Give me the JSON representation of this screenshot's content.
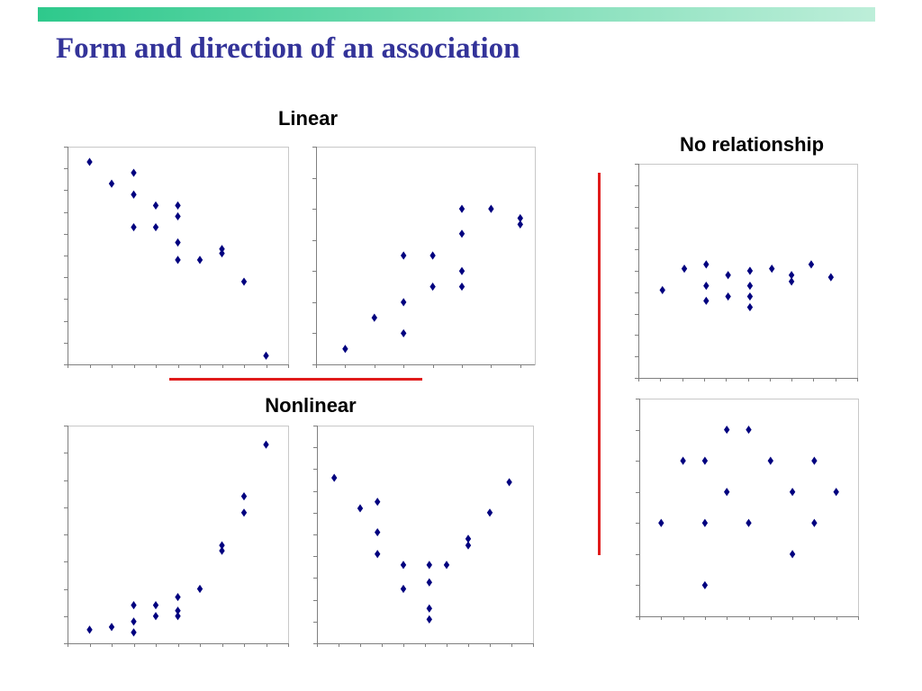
{
  "slide": {
    "title": "Form and direction of an association"
  },
  "sections": {
    "linear": "Linear",
    "nonlinear": "Nonlinear",
    "no_relationship": "No relationship"
  },
  "colors": {
    "title": "#333399",
    "divider": "#e01b1b",
    "marker": "#00007f",
    "accent_bar_start": "#2ec98c",
    "accent_bar_end": "#bdeed9"
  },
  "chart_data": [
    {
      "type": "scatter",
      "x": [
        1,
        2,
        3,
        3,
        3,
        4,
        4,
        5,
        5,
        5,
        5,
        6,
        7,
        7,
        8,
        9
      ],
      "y": [
        9.3,
        8.3,
        8.8,
        7.8,
        6.3,
        7.3,
        6.3,
        7.3,
        6.8,
        5.6,
        4.8,
        4.8,
        5.3,
        5.1,
        3.8,
        0.4
      ],
      "xlim": [
        0,
        10
      ],
      "ylim": [
        0,
        10
      ],
      "grid": false
    },
    {
      "type": "scatter",
      "x": [
        1,
        2,
        3,
        3,
        3,
        4,
        4,
        5,
        5,
        5,
        5,
        6,
        7,
        7
      ],
      "y": [
        0.5,
        1.5,
        1.0,
        2.0,
        3.5,
        3.5,
        2.5,
        2.5,
        3.0,
        4.2,
        5.0,
        5.0,
        4.7,
        4.5
      ],
      "xlim": [
        0,
        7.5
      ],
      "ylim": [
        0,
        7
      ],
      "grid": false
    },
    {
      "type": "scatter",
      "x": [
        1,
        2,
        3,
        3,
        3,
        4,
        4,
        5,
        5,
        5,
        6,
        7,
        7,
        8,
        8,
        9
      ],
      "y": [
        0.5,
        0.6,
        1.4,
        0.8,
        0.4,
        1.4,
        1.0,
        1.7,
        1.2,
        1.0,
        2.0,
        3.6,
        3.4,
        5.4,
        4.8,
        7.3
      ],
      "xlim": [
        0,
        10
      ],
      "ylim": [
        0,
        8
      ],
      "grid": false
    },
    {
      "type": "scatter",
      "x": [
        0.8,
        2.0,
        2.8,
        2.8,
        2.8,
        4.0,
        4.0,
        5.2,
        5.2,
        5.2,
        5.2,
        6.0,
        7.0,
        7.0,
        8.0,
        8.9
      ],
      "y": [
        7.6,
        6.2,
        6.5,
        5.1,
        4.1,
        3.6,
        2.5,
        3.6,
        2.8,
        1.6,
        1.1,
        3.6,
        4.8,
        4.5,
        6.0,
        7.4
      ],
      "xlim": [
        0,
        10
      ],
      "ylim": [
        0,
        10
      ],
      "grid": false
    },
    {
      "type": "scatter",
      "x": [
        1.1,
        2.1,
        3.1,
        3.1,
        3.1,
        4.1,
        4.1,
        5.1,
        5.1,
        5.1,
        5.1,
        6.1,
        7.0,
        7.0,
        7.9,
        8.8
      ],
      "y": [
        4.1,
        5.1,
        5.3,
        4.3,
        3.6,
        4.8,
        3.8,
        5.0,
        4.3,
        3.8,
        3.3,
        5.1,
        4.8,
        4.5,
        5.3,
        4.7
      ],
      "xlim": [
        0,
        10
      ],
      "ylim": [
        0,
        10
      ],
      "grid": false
    },
    {
      "type": "scatter",
      "x": [
        1,
        2,
        3,
        3,
        3,
        4,
        4,
        5,
        5,
        6,
        7,
        7,
        8,
        8,
        9
      ],
      "y": [
        3,
        5,
        5,
        3,
        1,
        6,
        4,
        6,
        3,
        5,
        4,
        2,
        5,
        3,
        4
      ],
      "xlim": [
        0,
        10
      ],
      "ylim": [
        0,
        7
      ],
      "grid": false
    }
  ]
}
